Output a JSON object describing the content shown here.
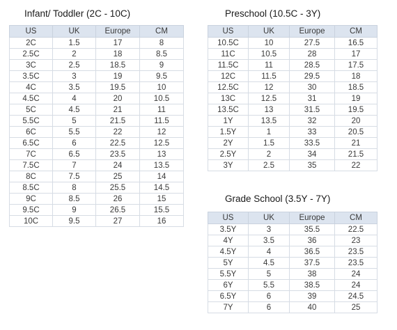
{
  "headers": [
    "US",
    "UK",
    "Europe",
    "CM"
  ],
  "infant": {
    "title": "Infant/ Toddler (2C - 10C)",
    "rows": [
      [
        "2C",
        "1.5",
        "17",
        "8"
      ],
      [
        "2.5C",
        "2",
        "18",
        "8.5"
      ],
      [
        "3C",
        "2.5",
        "18.5",
        "9"
      ],
      [
        "3.5C",
        "3",
        "19",
        "9.5"
      ],
      [
        "4C",
        "3.5",
        "19.5",
        "10"
      ],
      [
        "4.5C",
        "4",
        "20",
        "10.5"
      ],
      [
        "5C",
        "4.5",
        "21",
        "11"
      ],
      [
        "5.5C",
        "5",
        "21.5",
        "11.5"
      ],
      [
        "6C",
        "5.5",
        "22",
        "12"
      ],
      [
        "6.5C",
        "6",
        "22.5",
        "12.5"
      ],
      [
        "7C",
        "6.5",
        "23.5",
        "13"
      ],
      [
        "7.5C",
        "7",
        "24",
        "13.5"
      ],
      [
        "8C",
        "7.5",
        "25",
        "14"
      ],
      [
        "8.5C",
        "8",
        "25.5",
        "14.5"
      ],
      [
        "9C",
        "8.5",
        "26",
        "15"
      ],
      [
        "9.5C",
        "9",
        "26.5",
        "15.5"
      ],
      [
        "10C",
        "9.5",
        "27",
        "16"
      ]
    ]
  },
  "preschool": {
    "title": "Preschool (10.5C - 3Y)",
    "rows": [
      [
        "10.5C",
        "10",
        "27.5",
        "16.5"
      ],
      [
        "11C",
        "10.5",
        "28",
        "17"
      ],
      [
        "11.5C",
        "11",
        "28.5",
        "17.5"
      ],
      [
        "12C",
        "11.5",
        "29.5",
        "18"
      ],
      [
        "12.5C",
        "12",
        "30",
        "18.5"
      ],
      [
        "13C",
        "12.5",
        "31",
        "19"
      ],
      [
        "13.5C",
        "13",
        "31.5",
        "19.5"
      ],
      [
        "1Y",
        "13.5",
        "32",
        "20"
      ],
      [
        "1.5Y",
        "1",
        "33",
        "20.5"
      ],
      [
        "2Y",
        "1.5",
        "33.5",
        "21"
      ],
      [
        "2.5Y",
        "2",
        "34",
        "21.5"
      ],
      [
        "3Y",
        "2.5",
        "35",
        "22"
      ]
    ]
  },
  "gradeschool": {
    "title": "Grade School (3.5Y - 7Y)",
    "rows": [
      [
        "3.5Y",
        "3",
        "35.5",
        "22.5"
      ],
      [
        "4Y",
        "3.5",
        "36",
        "23"
      ],
      [
        "4.5Y",
        "4",
        "36.5",
        "23.5"
      ],
      [
        "5Y",
        "4.5",
        "37.5",
        "23.5"
      ],
      [
        "5.5Y",
        "5",
        "38",
        "24"
      ],
      [
        "6Y",
        "5.5",
        "38.5",
        "24"
      ],
      [
        "6.5Y",
        "6",
        "39",
        "24.5"
      ],
      [
        "7Y",
        "6",
        "40",
        "25"
      ]
    ]
  }
}
